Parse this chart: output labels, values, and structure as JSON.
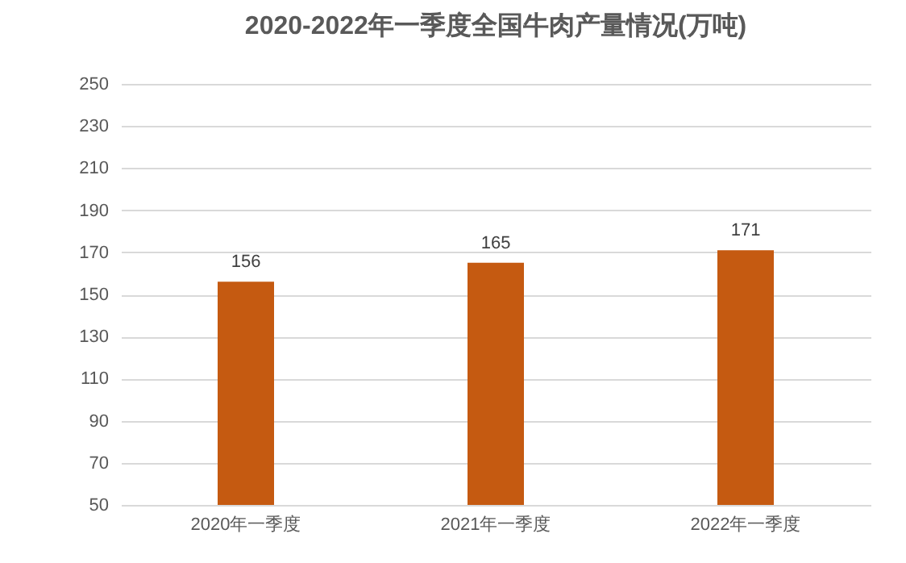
{
  "chart_data": {
    "type": "bar",
    "title": "2020-2022年一季度全国牛肉产量情况(万吨)",
    "categories": [
      "2020年一季度",
      "2021年一季度",
      "2022年一季度"
    ],
    "values": [
      156,
      165,
      171
    ],
    "color": "#c55a11",
    "ylim": [
      50,
      250
    ],
    "yticks": [
      50,
      70,
      90,
      110,
      130,
      150,
      170,
      190,
      210,
      230,
      250
    ],
    "grid": "y",
    "data_labels": true
  }
}
